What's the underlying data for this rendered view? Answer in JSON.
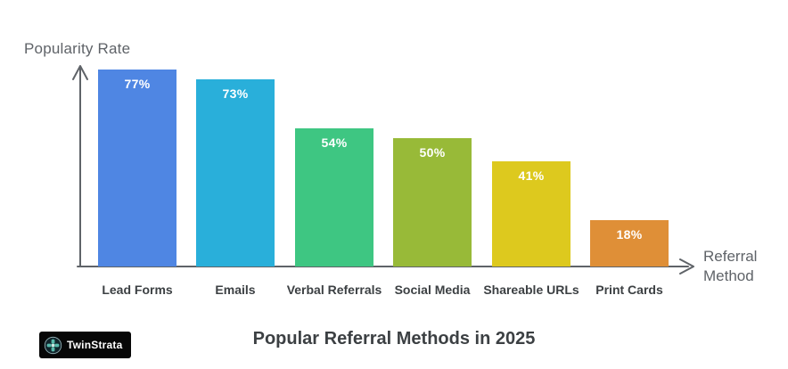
{
  "chart_data": {
    "type": "bar",
    "title": "Popular Referral Methods in 2025",
    "xlabel": "Referral Method",
    "ylabel": "Popularity Rate",
    "categories": [
      "Lead Forms",
      "Emails",
      "Verbal Referrals",
      "Social Media",
      "Shareable URLs",
      "Print Cards"
    ],
    "values": [
      77,
      73,
      54,
      50,
      41,
      18
    ],
    "value_labels": [
      "77%",
      "73%",
      "54%",
      "50%",
      "41%",
      "18%"
    ],
    "bar_colors": [
      "#4f86e3",
      "#29afda",
      "#3ec682",
      "#98ba38",
      "#ddc91e",
      "#df8f37"
    ],
    "ylim": [
      0,
      100
    ],
    "grid": false,
    "legend": null,
    "value_label_color": "#ffffff",
    "axis_color": "#5f6368",
    "category_label_color": "#3c4043"
  },
  "axes": {
    "y_label": "Popularity Rate",
    "x_label_line1": "Referral",
    "x_label_line2": "Method"
  },
  "footer": {
    "title": "Popular Referral Methods in 2025",
    "logo_text": "TwinStrata"
  },
  "icons": {
    "logo_icon": "twinstrata-clover-icon"
  },
  "colors": {
    "background": "#ffffff",
    "axis": "#5f6368",
    "title_text": "#3c4043",
    "logo_background": "#070707",
    "logo_accent": "#57b8ab"
  }
}
